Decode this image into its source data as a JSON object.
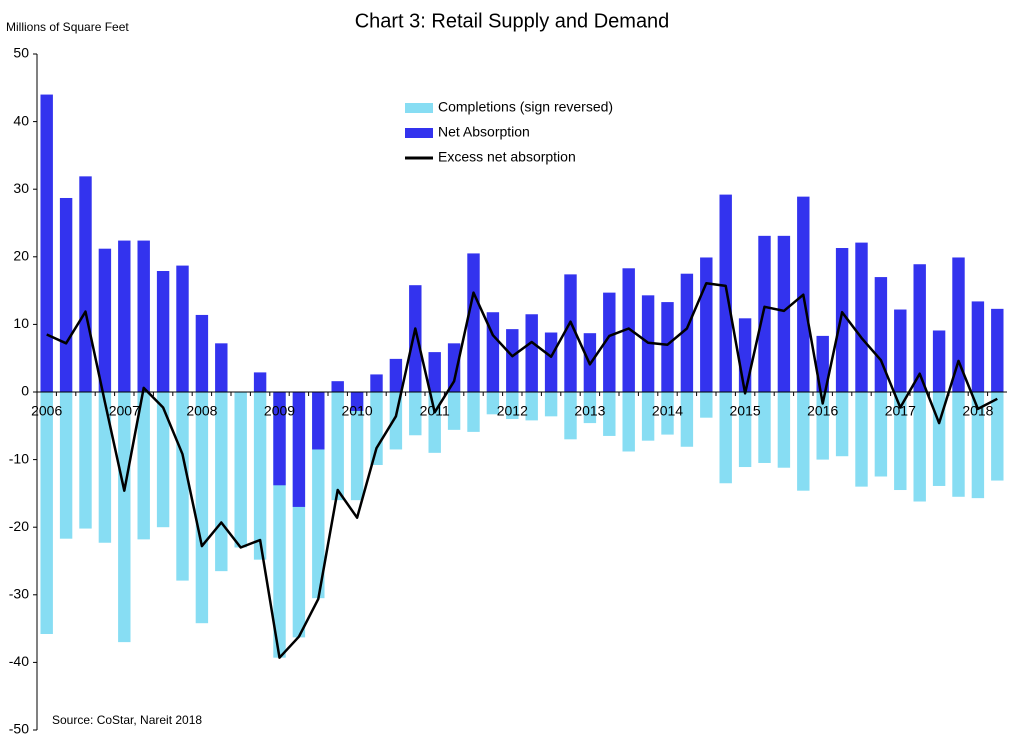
{
  "chart_data": {
    "type": "bar-line",
    "title": "Chart 3: Retail Supply and Demand",
    "y_axis_label": "Millions of Square Feet",
    "annotation": "Source: CoStar, Nareit 2018",
    "categories": [
      "2006",
      null,
      null,
      null,
      "2007",
      null,
      null,
      null,
      "2008",
      null,
      null,
      null,
      "2009",
      null,
      null,
      null,
      "2010",
      null,
      null,
      null,
      "2011",
      null,
      null,
      null,
      "2012",
      null,
      null,
      null,
      "2013",
      null,
      null,
      null,
      "2014",
      null,
      null,
      null,
      "2015",
      null,
      null,
      null,
      "2016",
      null,
      null,
      null,
      "2017",
      null,
      null,
      null,
      "2018",
      null
    ],
    "series": [
      {
        "name": "Completions (sign reversed)",
        "kind": "bar",
        "color": "#87ddf3",
        "values": [
          -35.8,
          -21.7,
          -20.2,
          -22.3,
          -37.0,
          -21.8,
          -20.0,
          -27.9,
          -34.2,
          -26.5,
          -23.0,
          -24.8,
          -39.3,
          -36.3,
          -30.5,
          -16.0,
          -16.0,
          -10.8,
          -8.5,
          -6.4,
          -9.0,
          -5.6,
          -5.9,
          -3.3,
          -4.0,
          -4.2,
          -3.6,
          -7.0,
          -4.6,
          -6.5,
          -8.8,
          -7.2,
          -6.3,
          -8.1,
          -3.8,
          -13.5,
          -11.1,
          -10.5,
          -11.2,
          -14.6,
          -10.0,
          -9.5,
          -14.0,
          -12.5,
          -14.5,
          -16.2,
          -13.9,
          -15.5,
          -15.7,
          -13.1
        ]
      },
      {
        "name": "Net Absorption",
        "kind": "bar",
        "color": "#3333ee",
        "values": [
          44.0,
          28.7,
          31.9,
          21.2,
          22.4,
          22.4,
          17.9,
          18.7,
          11.4,
          7.2,
          0,
          2.9,
          -13.8,
          -17.0,
          -8.5,
          1.6,
          -2.8,
          2.6,
          4.9,
          15.8,
          5.9,
          7.2,
          20.5,
          11.8,
          9.3,
          11.5,
          8.8,
          17.4,
          8.7,
          14.7,
          18.3,
          14.3,
          13.3,
          17.5,
          19.9,
          29.2,
          10.9,
          23.1,
          23.1,
          28.9,
          8.3,
          21.3,
          22.1,
          17.0,
          12.2,
          18.9,
          9.1,
          19.9,
          13.4,
          12.3
        ]
      },
      {
        "name": "Excess net absorption",
        "kind": "line",
        "color": "#000000",
        "values": [
          8.5,
          7.2,
          11.9,
          -1.5,
          -14.6,
          0.6,
          -2.3,
          -9.2,
          -22.8,
          -19.3,
          -23.0,
          -21.9,
          -39.3,
          -36.2,
          -30.6,
          -14.5,
          -18.6,
          -8.3,
          -3.6,
          9.4,
          -3.0,
          1.6,
          14.7,
          8.4,
          5.3,
          7.4,
          5.2,
          10.4,
          4.1,
          8.3,
          9.4,
          7.3,
          7.0,
          9.4,
          16.1,
          15.7,
          -0.2,
          12.6,
          12.0,
          14.4,
          -1.7,
          11.8,
          8.0,
          4.7,
          -2.3,
          2.7,
          -4.6,
          4.6,
          -2.5,
          -1.0
        ]
      }
    ],
    "ylim": [
      -50,
      50
    ],
    "yticks": [
      -50,
      -40,
      -30,
      -20,
      -10,
      0,
      10,
      20,
      30,
      40,
      50
    ],
    "legend": "upper center",
    "grid": false
  }
}
